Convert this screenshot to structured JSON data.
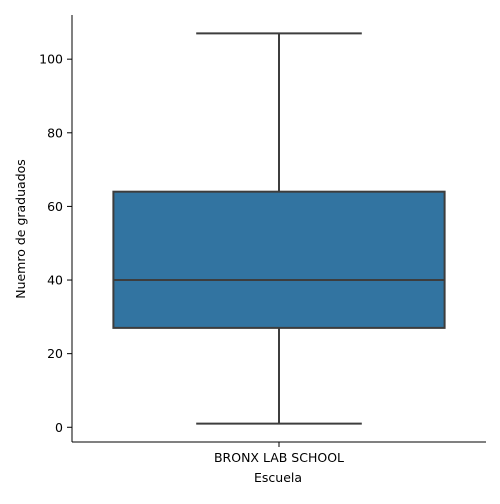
{
  "chart_data": {
    "type": "box",
    "title": "",
    "xlabel": "Escuela",
    "ylabel": "Nuemro de graduados",
    "categories": [
      "BRONX LAB SCHOOL"
    ],
    "boxes": [
      {
        "category": "BRONX LAB SCHOOL",
        "whisker_low": 1,
        "q1": 27,
        "median": 40,
        "q3": 64,
        "whisker_high": 107
      }
    ],
    "ylim": [
      -4,
      112
    ],
    "yticks": [
      0,
      20,
      40,
      60,
      80,
      100
    ],
    "grid": false,
    "legend": "none",
    "colors": {
      "box_fill": "#3274a1",
      "line": "#3d3d3d",
      "axis": "#000000"
    }
  }
}
